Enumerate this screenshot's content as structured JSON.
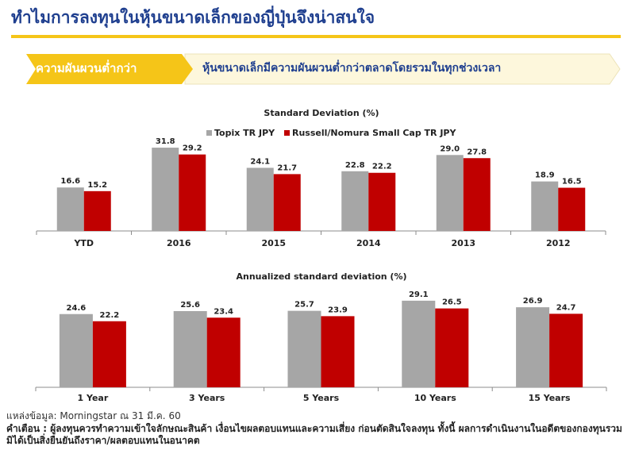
{
  "page": {
    "title": "ทำไมการลงทุนในหุ้นขนาดเล็กของญี่ปุ่นจึงน่าสนใจ",
    "banner_label": "ความผันผวนต่ำกว่า",
    "banner_text": "หุ้นขนาดเล็กมีความผันผวนต่ำกว่าตลาดโดยรวมในทุกช่วงเวลา",
    "source": "แหล่งข้อมูล: Morningstar ณ 31 มี.ค. 60",
    "disclaimer": "คำเตือน : ผู้ลงทุนควรทำความเข้าใจลักษณะสินค้า เงื่อนไขผลตอบแทนและความเสี่ยง ก่อนตัดสินใจลงทุน ทั้งนี้ ผลการดำเนินงานในอดีตของกองทุนรวมมิได้เป็นสิ่งยืนยันถึงราคา/ผลตอบแทนในอนาคต",
    "colors": {
      "title": "#1f3f8f",
      "rule": "#f5c518",
      "banner_fill": "#f5c518",
      "banner_body": "#fdf7dc"
    }
  },
  "chart_data": [
    {
      "type": "bar",
      "title": "Standard Deviation (%)",
      "legend_position": "top",
      "grid": false,
      "categories": [
        "YTD",
        "2016",
        "2015",
        "2014",
        "2013",
        "2012"
      ],
      "series": [
        {
          "name": "Topix TR JPY",
          "color": "#a6a6a6",
          "values": [
            16.6,
            31.8,
            24.1,
            22.8,
            29.0,
            18.9
          ]
        },
        {
          "name": "Russell/Nomura Small Cap TR JPY",
          "color": "#c00000",
          "values": [
            15.2,
            29.2,
            21.7,
            22.2,
            27.8,
            16.5
          ]
        }
      ]
    },
    {
      "type": "bar",
      "title": "Annualized standard deviation (%)",
      "grid": false,
      "categories": [
        "1 Year",
        "3 Years",
        "5 Years",
        "10 Years",
        "15 Years"
      ],
      "series": [
        {
          "color": "#a6a6a6",
          "values": [
            24.6,
            25.6,
            25.7,
            29.1,
            26.9
          ]
        },
        {
          "color": "#c00000",
          "values": [
            22.2,
            23.4,
            23.9,
            26.5,
            24.7
          ]
        }
      ]
    }
  ]
}
